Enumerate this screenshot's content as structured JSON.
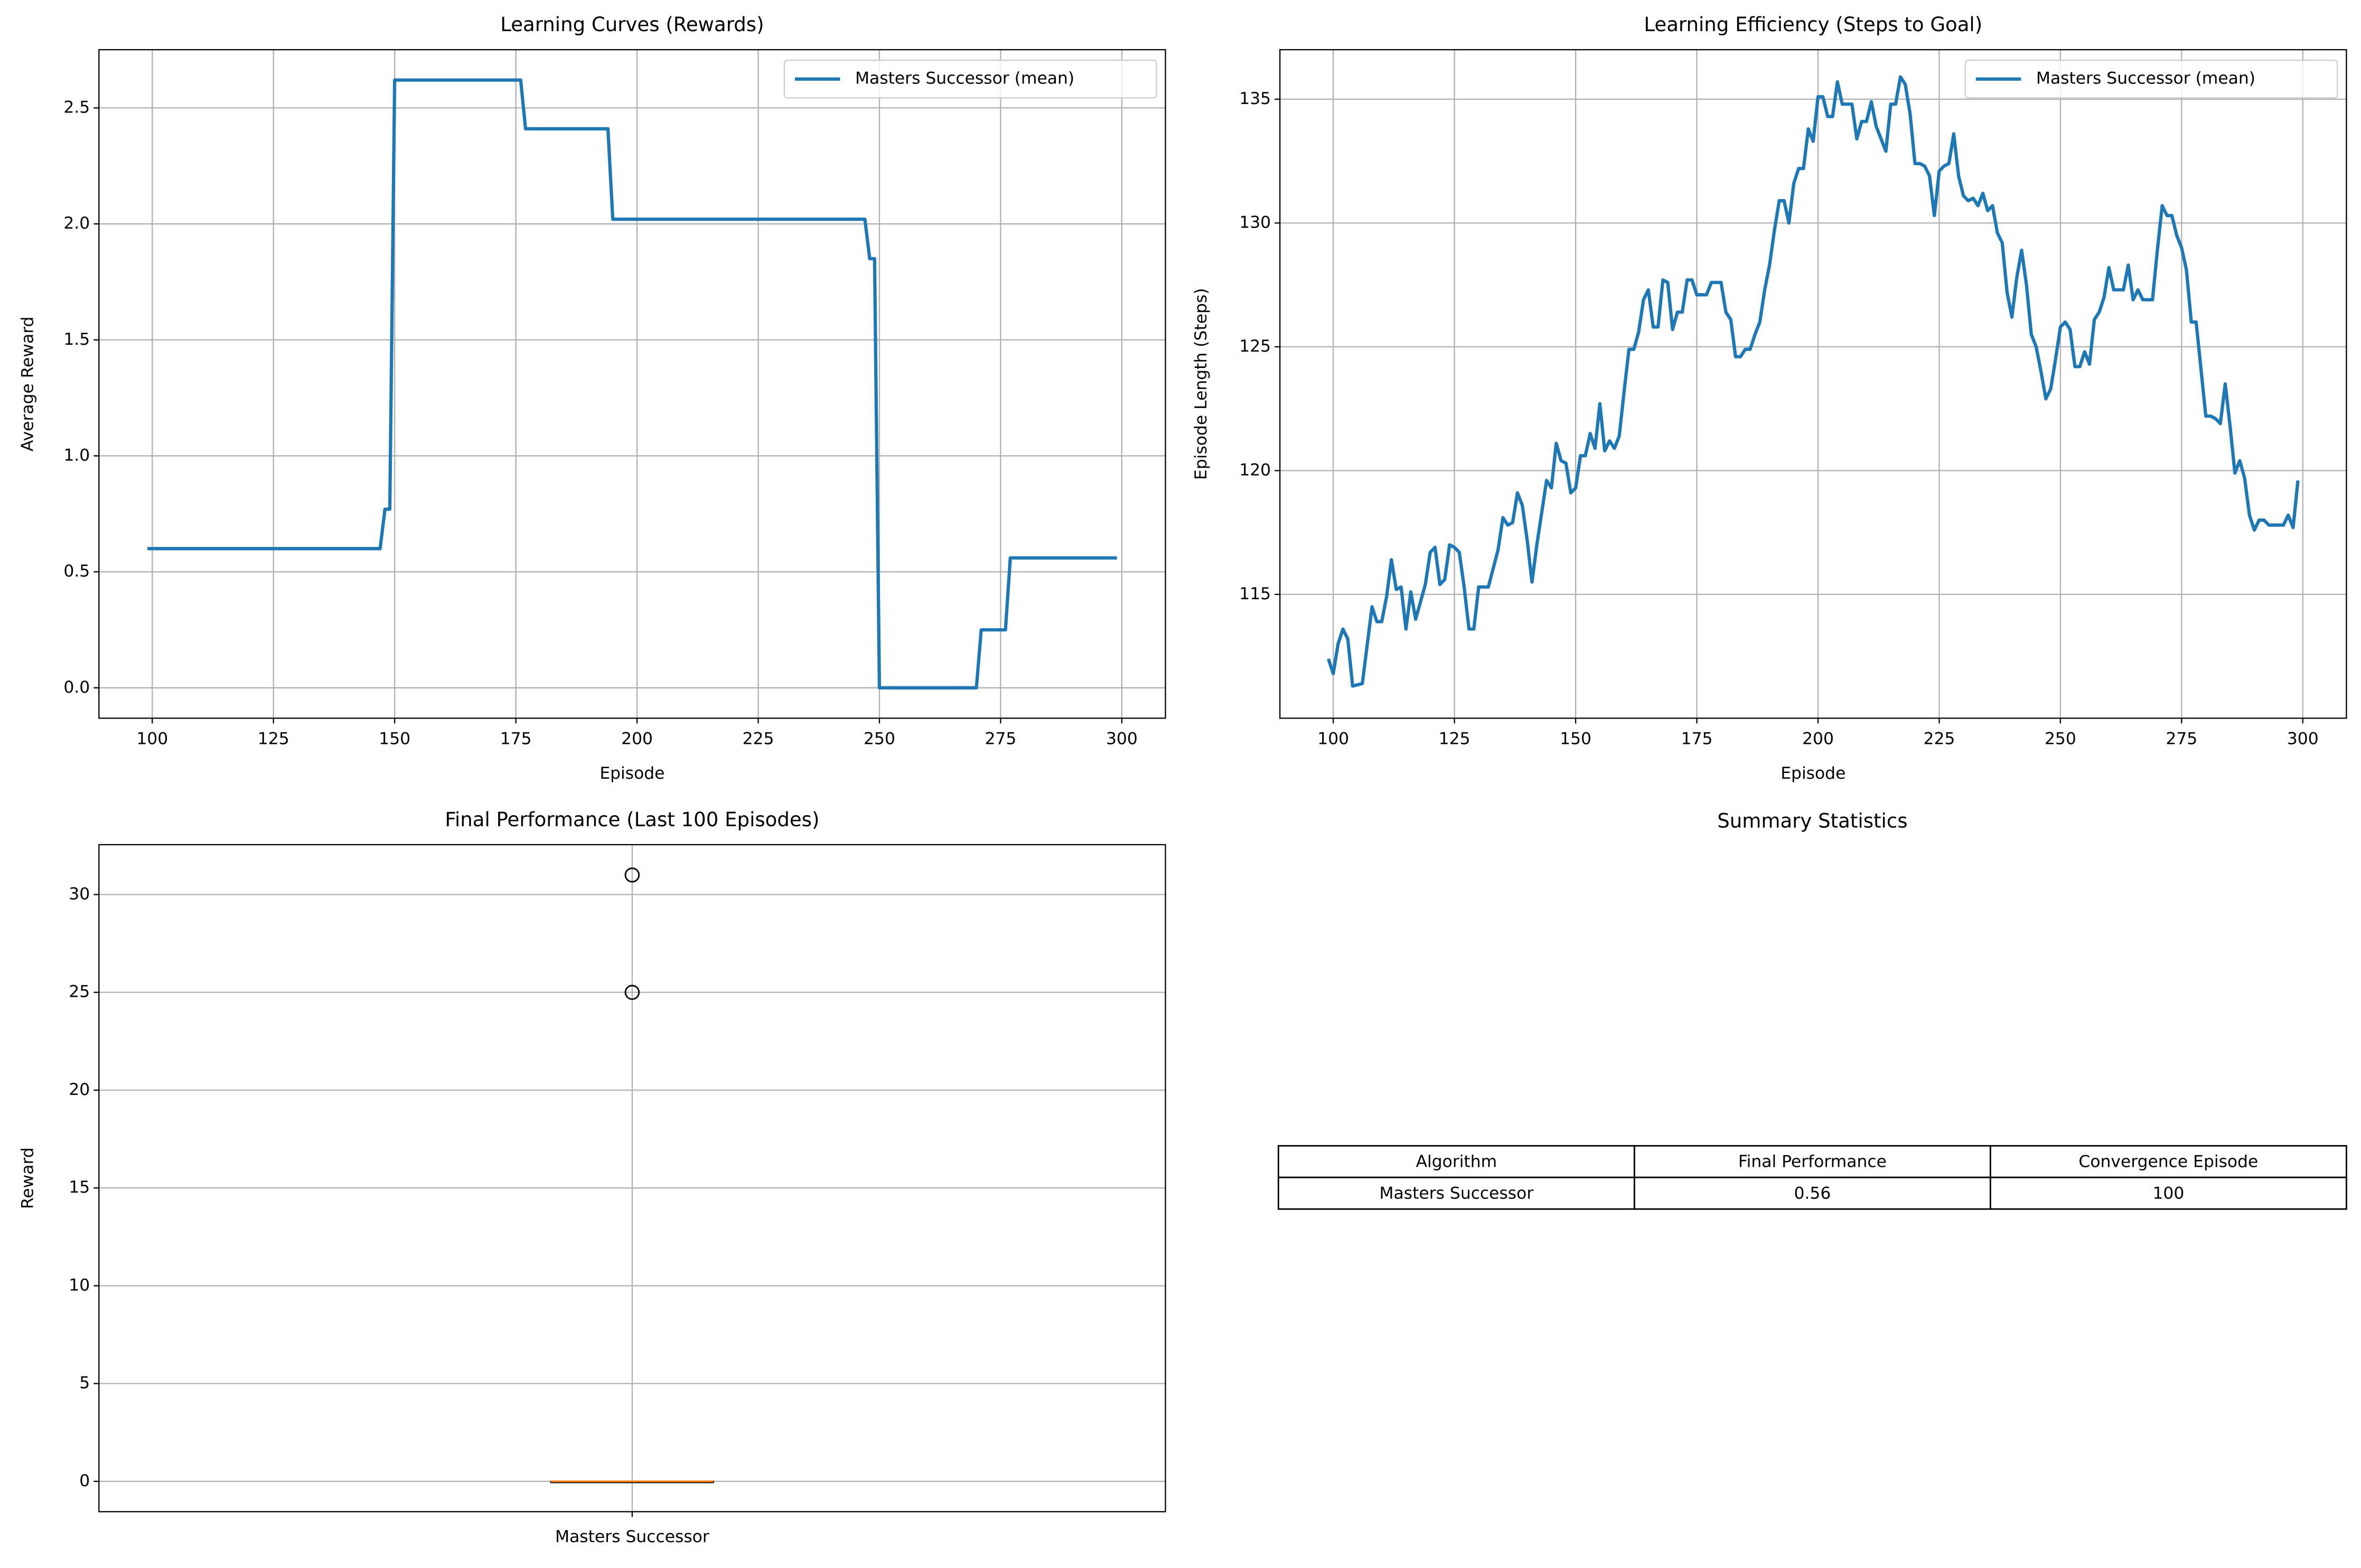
{
  "chart_data": [
    {
      "type": "line",
      "title": "Learning Curves (Rewards)",
      "xlabel": "Episode",
      "ylabel": "Average Reward",
      "x": [
        99,
        147,
        148,
        149,
        150,
        176,
        177,
        194,
        195,
        247,
        248,
        249,
        250,
        270,
        271,
        276,
        277,
        299
      ],
      "series": [
        {
          "name": "Masters Successor (mean)",
          "color": "#1f77b4",
          "values": [
            0.6,
            0.6,
            0.77,
            0.77,
            2.62,
            2.62,
            2.41,
            2.41,
            2.02,
            2.02,
            1.85,
            1.85,
            0.0,
            0.0,
            0.25,
            0.25,
            0.56,
            0.56
          ]
        }
      ],
      "xlim": [
        89,
        309
      ],
      "xticks": [
        100,
        125,
        150,
        175,
        200,
        225,
        250,
        275,
        300
      ],
      "ylim": [
        -0.131,
        2.751
      ],
      "yticks": [
        {
          "value": 0,
          "label": "0.0"
        },
        0.5,
        {
          "value": 1,
          "label": "1.0"
        },
        1.5,
        {
          "value": 2,
          "label": "2.0"
        },
        2.5
      ],
      "grid": true,
      "legend": "upper right"
    },
    {
      "type": "line",
      "title": "Learning Efficiency (Steps to Goal)",
      "xlabel": "Episode",
      "ylabel": "Episode Length (Steps)",
      "x": [
        99,
        100,
        101,
        102,
        103,
        104,
        106,
        108,
        109,
        110,
        111,
        112,
        113,
        114,
        115,
        116,
        117,
        118,
        119,
        120,
        121,
        122,
        123,
        124,
        125,
        126,
        127,
        128,
        129,
        130,
        132,
        134,
        135,
        136,
        137,
        138,
        139,
        140,
        141,
        142,
        143,
        144,
        145,
        146,
        147,
        148,
        149,
        150,
        151,
        152,
        153,
        154,
        155,
        156,
        157,
        158,
        159,
        160,
        161,
        162,
        163,
        164,
        165,
        166,
        167,
        168,
        169,
        170,
        171,
        172,
        173,
        174,
        175,
        177,
        178,
        180,
        181,
        182,
        183,
        184,
        185,
        186,
        187,
        188,
        189,
        190,
        191,
        192,
        193,
        194,
        195,
        196,
        197,
        198,
        199,
        200,
        201,
        202,
        203,
        204,
        205,
        206,
        207,
        208,
        209,
        210,
        211,
        212,
        213,
        214,
        215,
        216,
        217,
        218,
        219,
        220,
        221,
        222,
        223,
        224,
        225,
        226,
        227,
        228,
        229,
        230,
        231,
        232,
        233,
        234,
        235,
        236,
        237,
        238,
        239,
        240,
        241,
        242,
        243,
        244,
        245,
        246,
        247,
        248,
        249,
        250,
        251,
        252,
        253,
        254,
        255,
        256,
        257,
        258,
        259,
        260,
        261,
        262,
        263,
        264,
        265,
        266,
        267,
        268,
        269,
        270,
        271,
        272,
        273,
        274,
        275,
        276,
        277,
        278,
        279,
        280,
        281,
        282,
        283,
        284,
        285,
        286,
        287,
        288,
        289,
        290,
        291,
        292,
        293,
        295,
        296,
        297,
        298,
        299
      ],
      "series": [
        {
          "name": "Masters Successor (mean)",
          "color": "#1f77b4",
          "values": [
            112.4,
            111.8,
            113.0,
            113.6,
            113.2,
            111.3,
            111.4,
            114.5,
            113.9,
            113.9,
            114.9,
            116.4,
            115.2,
            115.3,
            113.6,
            115.1,
            114.0,
            114.7,
            115.4,
            116.7,
            116.9,
            115.4,
            115.6,
            117.0,
            116.9,
            116.7,
            115.3,
            113.6,
            113.6,
            115.3,
            115.3,
            116.8,
            118.1,
            117.8,
            117.9,
            119.1,
            118.6,
            117.2,
            115.5,
            117.0,
            118.3,
            119.6,
            119.3,
            121.1,
            120.4,
            120.3,
            119.1,
            119.3,
            120.6,
            120.6,
            121.5,
            120.9,
            122.7,
            120.8,
            121.2,
            120.9,
            121.4,
            123.2,
            124.9,
            124.9,
            125.6,
            126.9,
            127.3,
            125.8,
            125.8,
            127.7,
            127.6,
            125.7,
            126.4,
            126.4,
            127.7,
            127.7,
            127.1,
            127.1,
            127.6,
            127.6,
            126.4,
            126.1,
            124.6,
            124.6,
            124.9,
            124.9,
            125.5,
            126.0,
            127.3,
            128.3,
            129.7,
            130.9,
            130.9,
            130.0,
            131.6,
            132.2,
            132.2,
            133.8,
            133.3,
            135.1,
            135.1,
            134.3,
            134.3,
            135.7,
            134.8,
            134.8,
            134.8,
            133.4,
            134.1,
            134.1,
            134.9,
            133.9,
            133.4,
            132.9,
            134.8,
            134.8,
            135.9,
            135.6,
            134.4,
            132.4,
            132.4,
            132.3,
            131.9,
            130.3,
            132.1,
            132.3,
            132.4,
            133.6,
            131.9,
            131.1,
            130.9,
            131.0,
            130.7,
            131.2,
            130.5,
            130.7,
            129.6,
            129.2,
            127.2,
            126.2,
            127.8,
            128.9,
            127.5,
            125.5,
            125.0,
            124.0,
            122.9,
            123.3,
            124.5,
            125.8,
            126.0,
            125.7,
            124.2,
            124.2,
            124.8,
            124.3,
            126.1,
            126.4,
            127.0,
            128.2,
            127.3,
            127.3,
            127.3,
            128.3,
            126.9,
            127.3,
            126.9,
            126.9,
            126.9,
            128.9,
            130.7,
            130.3,
            130.3,
            129.5,
            129.0,
            128.1,
            126.0,
            126.0,
            124.1,
            122.2,
            122.2,
            122.1,
            121.9,
            123.5,
            121.8,
            119.9,
            120.4,
            119.7,
            118.2,
            117.6,
            118.0,
            118.0,
            117.8,
            117.8,
            117.8,
            118.2,
            117.7,
            119.6
          ]
        }
      ],
      "xlim": [
        89,
        309
      ],
      "xticks": [
        100,
        125,
        150,
        175,
        200,
        225,
        250,
        275,
        300
      ],
      "ylim": [
        110.0,
        137.0
      ],
      "yticks": [
        115,
        120,
        125,
        130,
        135
      ],
      "grid": true,
      "legend": "upper right"
    },
    {
      "type": "box",
      "title": "Final Performance (Last 100 Episodes)",
      "ylabel": "Reward",
      "categories": [
        "Masters Successor"
      ],
      "min": 0,
      "q1": 0,
      "median": 0,
      "q3": 0,
      "max": 0,
      "fliers": [
        25,
        31
      ],
      "color": "#000000",
      "median_color": "#ff7f0e",
      "ylim": [
        -1.55,
        32.55
      ],
      "yticks": [
        0,
        5,
        10,
        15,
        20,
        25,
        30
      ],
      "grid": true
    }
  ],
  "table": {
    "title": "Summary Statistics",
    "columns": [
      "Algorithm",
      "Final Performance",
      "Convergence Episode"
    ],
    "rows": [
      [
        "Masters Successor",
        "0.56",
        "100"
      ]
    ]
  }
}
